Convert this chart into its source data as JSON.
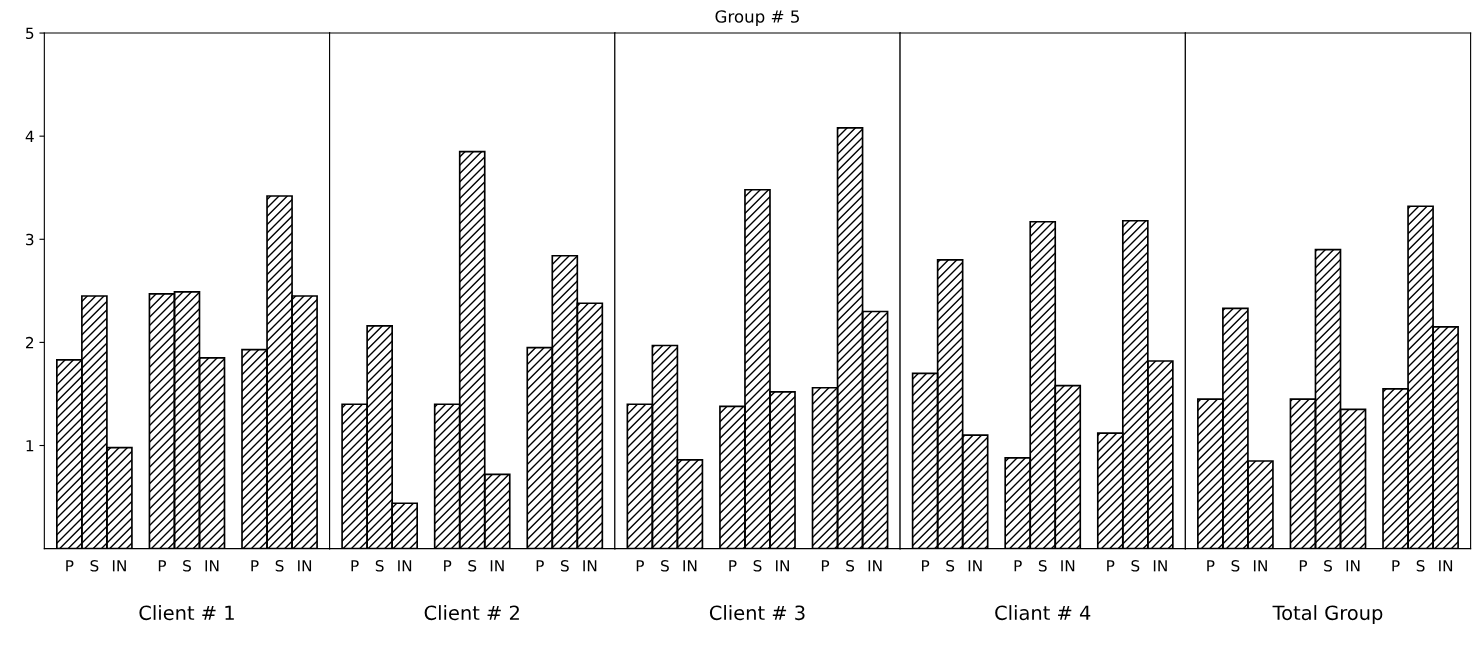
{
  "chart_data": [
    {
      "type": "bar",
      "xlabel": "Client # 1",
      "categories": [
        "P",
        "S",
        "IN",
        "P",
        "S",
        "IN",
        "P",
        "S",
        "IN"
      ],
      "values": [
        1.83,
        2.45,
        0.98,
        2.47,
        2.49,
        1.85,
        1.93,
        3.42,
        2.45
      ],
      "color": "#000000",
      "ylim": [
        0,
        5
      ],
      "yticks": [
        1,
        2,
        3,
        4,
        5
      ],
      "grid": false,
      "legend": false
    },
    {
      "type": "bar",
      "xlabel": "Client # 2",
      "categories": [
        "P",
        "S",
        "IN",
        "P",
        "S",
        "IN",
        "P",
        "S",
        "IN"
      ],
      "values": [
        1.4,
        2.16,
        0.44,
        1.4,
        3.85,
        0.72,
        1.95,
        2.84,
        2.38
      ],
      "color": "#000000",
      "ylim": [
        0,
        5
      ],
      "yticks": [
        1,
        2,
        3,
        4,
        5
      ],
      "tick_labels": "x",
      "grid": false,
      "legend": false
    },
    {
      "type": "bar",
      "title": "Group # 5",
      "xlabel": "Client # 3",
      "categories": [
        "P",
        "S",
        "IN",
        "P",
        "S",
        "IN",
        "P",
        "S",
        "IN"
      ],
      "values": [
        1.4,
        1.97,
        0.86,
        1.38,
        3.48,
        1.52,
        1.56,
        4.08,
        2.3
      ],
      "color": "#000000",
      "ylim": [
        0,
        5
      ],
      "yticks": [
        1,
        2,
        3,
        4,
        5
      ],
      "tick_labels": "x",
      "grid": false,
      "legend": false
    },
    {
      "type": "bar",
      "xlabel": "Cliant # 4",
      "categories": [
        "P",
        "S",
        "IN",
        "P",
        "S",
        "IN",
        "P",
        "S",
        "IN"
      ],
      "values": [
        1.7,
        2.8,
        1.1,
        0.88,
        3.17,
        1.58,
        1.12,
        3.18,
        1.82
      ],
      "color": "#000000",
      "ylim": [
        0,
        5
      ],
      "yticks": [
        1,
        2,
        3,
        4,
        5
      ],
      "tick_labels": "x",
      "grid": false,
      "legend": false
    },
    {
      "type": "bar",
      "xlabel": "Total Group",
      "categories": [
        "P",
        "S",
        "IN",
        "P",
        "S",
        "IN",
        "P",
        "S",
        "IN"
      ],
      "values": [
        1.45,
        2.33,
        0.85,
        1.45,
        2.9,
        1.35,
        1.55,
        3.32,
        2.15
      ],
      "color": "#000000",
      "ylim": [
        0,
        5
      ],
      "yticks": [
        1,
        2,
        3,
        4,
        5
      ],
      "tick_labels": "x",
      "grid": false,
      "legend": false
    }
  ]
}
